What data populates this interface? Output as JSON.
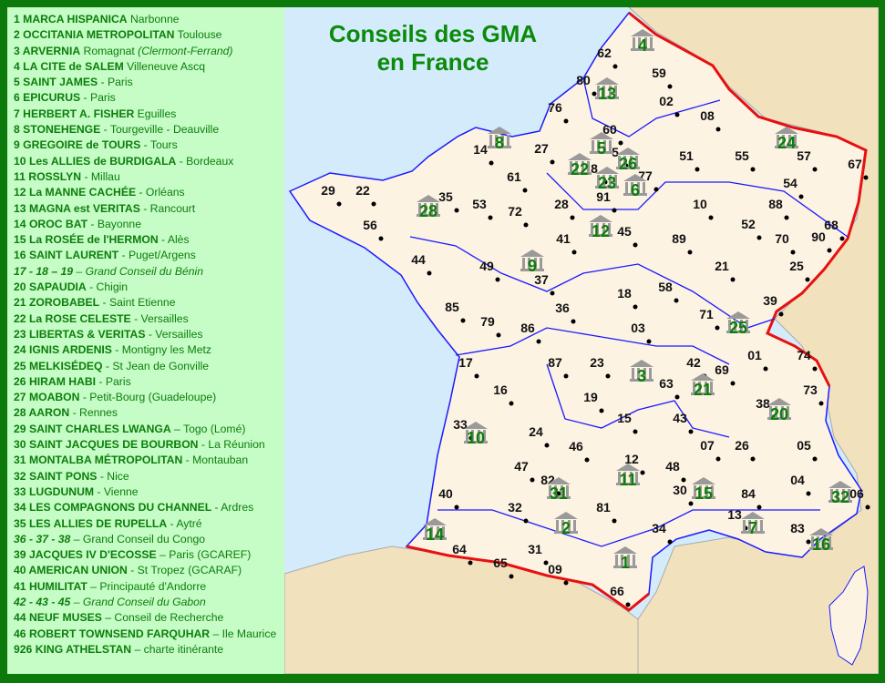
{
  "title": {
    "line1": "Conseils des GMA",
    "line2": "en France"
  },
  "colors": {
    "sea": "#d3ebfa",
    "france": "#fdf3e3",
    "neighbors": "#f1e2bd",
    "border": "#e81010",
    "region_border": "#1a1aff",
    "text_green": "#0b7e0b",
    "frame": "#0b7a0b",
    "legend_bg": "#c6fcc6"
  },
  "legend": [
    {
      "b": "1 MARCA  HISPANICA",
      "r": " Narbonne"
    },
    {
      "b": "2 OCCITANIA METROPOLITAN",
      "r": " Toulouse"
    },
    {
      "b": "3 ARVERNIA",
      "r": " Romagnat ",
      "i": "(Clermont-Ferrand)"
    },
    {
      "b": "4 LA CITE de SALEM",
      "r": " Villeneuve Ascq"
    },
    {
      "b": "5 SAINT JAMES",
      "r": " - Paris"
    },
    {
      "b": "6 EPICURUS",
      "r": " - Paris"
    },
    {
      "b": "7 HERBERT A. FISHER",
      "r": " Eguilles"
    },
    {
      "b": "8 STONEHENGE",
      "r": " - Tourgeville - Deauville"
    },
    {
      "b": "9 GREGOIRE de TOURS",
      "r": " - Tours"
    },
    {
      "b": "10 Les ALLIES de BURDIGALA",
      "r": " - Bordeaux"
    },
    {
      "b": "11 ROSSLYN",
      "r": " - Millau"
    },
    {
      "b": "12 La MANNE CACHÉE",
      "r": " - Orléans"
    },
    {
      "b": "13 MAGNA est VERITAS",
      "r": " - Rancourt"
    },
    {
      "b": "14 OROC BAT",
      "r": " - Bayonne"
    },
    {
      "b": "15 La ROSÉE de l'HERMON",
      "r": " - Alès"
    },
    {
      "b": "16 SAINT LAURENT",
      "r": " - Puget/Argens"
    },
    {
      "b": "17 - 18 – 19",
      "r": "  – Grand Conseil du Bénin",
      "italic": true
    },
    {
      "b": "20 SAPAUDIA",
      "r": " - Chigin"
    },
    {
      "b": "21 ZOROBABEL",
      "r": "  - Saint Etienne"
    },
    {
      "b": "22 La ROSE CELESTE",
      "r": " - Versailles"
    },
    {
      "b": "23 LIBERTAS & VERITAS",
      "r": " - Versailles"
    },
    {
      "b": "24 IGNIS ARDENIS",
      "r": " - Montigny les Metz"
    },
    {
      "b": "25 MELKISÉDEQ",
      "r": " - St Jean de Gonville"
    },
    {
      "b": "26 HIRAM HABI",
      "r": " - Paris"
    },
    {
      "b": "27 MOABON",
      "r": " - Petit-Bourg (Guadeloupe)"
    },
    {
      "b": "28 AARON",
      "r": " - Rennes"
    },
    {
      "b": "29 SAINT CHARLES LWANGA",
      "r": " – Togo (Lomé)"
    },
    {
      "b": "30 SAINT JACQUES DE BOURBON",
      "r": " - La Réunion"
    },
    {
      "b": "31 MONTALBA MÉTROPOLITAN",
      "r": " - Montauban"
    },
    {
      "b": "32 SAINT PONS",
      "r": " - Nice"
    },
    {
      "b": "33 LUGDUNUM",
      "r": " - Vienne"
    },
    {
      "b": "34 LES COMPAGNONS DU CHANNEL",
      "r": " - Ardres"
    },
    {
      "b": "35 LES ALLIES DE RUPELLA",
      "r": " - Aytré"
    },
    {
      "b": "36 - 37 - 38",
      "r": " – Grand Conseil du Congo",
      "italicnum": true
    },
    {
      "b": "39 JACQUES IV D'ECOSSE",
      "r": " – Paris (GCAREF)"
    },
    {
      "b": "40 AMERICAN UNION",
      "r": " - St Tropez (GCARAF)"
    },
    {
      "b": "41 HUMILITAT",
      "r": " – Principauté d'Andorre"
    },
    {
      "b": "42 - 43 - 45",
      "r": " – Grand Conseil du Gabon",
      "italic": true
    },
    {
      "b": "44 NEUF MUSES",
      "r": " – Conseil de Recherche"
    },
    {
      "b": "46 ROBERT TOWNSEND FARQUHAR",
      "r": " – Ile Maurice"
    },
    {
      "b": "926 KING ATHELSTAN",
      "r": " – charte itinérante"
    }
  ],
  "departments": [
    "62",
    "59",
    "80",
    "02",
    "08",
    "76",
    "60",
    "14",
    "27",
    "5",
    "51",
    "55",
    "57",
    "67",
    "61",
    "8",
    "77",
    "54",
    "29",
    "22",
    "35",
    "53",
    "72",
    "28",
    "91",
    "10",
    "88",
    "56",
    "45",
    "52",
    "68",
    "70",
    "90",
    "41",
    "89",
    "44",
    "49",
    "37",
    "21",
    "25",
    "85",
    "36",
    "18",
    "58",
    "39",
    "79",
    "86",
    "71",
    "03",
    "17",
    "87",
    "23",
    "63",
    "42",
    "69",
    "01",
    "74",
    "73",
    "16",
    "19",
    "38",
    "15",
    "43",
    "33",
    "24",
    "07",
    "26",
    "05",
    "46",
    "12",
    "48",
    "47",
    "82",
    "04",
    "40",
    "30",
    "84",
    "06",
    "32",
    "81",
    "13",
    "34",
    "83",
    "64",
    "31",
    "65",
    "09",
    "66"
  ],
  "lodges": [
    "4",
    "13",
    "8",
    "5",
    "22",
    "26",
    "23",
    "6",
    "24",
    "28",
    "12",
    "9",
    "25",
    "3",
    "21",
    "20",
    "10",
    "11",
    "15",
    "31",
    "2",
    "14",
    "7",
    "16",
    "32",
    "1"
  ],
  "icons": {
    "lodge_marker": "temple-icon",
    "city_marker": "dot"
  }
}
